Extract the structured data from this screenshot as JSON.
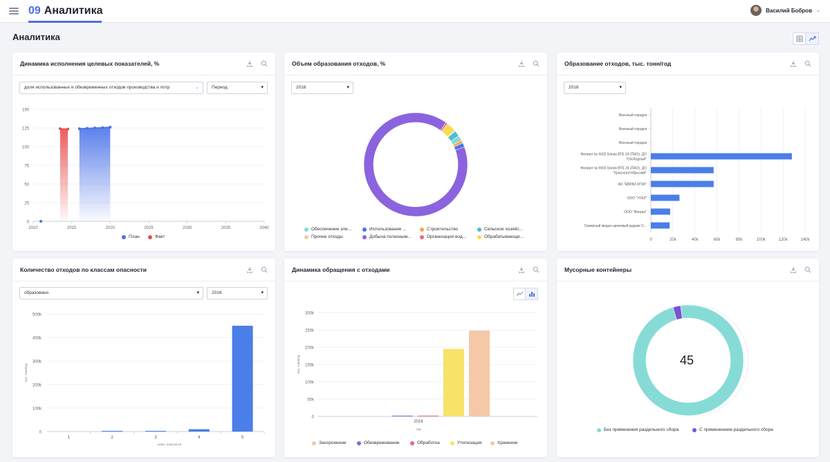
{
  "header": {
    "app_number": "09",
    "app_name": "Аналитика",
    "user_name": "Василий Бобров"
  },
  "page": {
    "title": "Аналитика"
  },
  "colors": {
    "accent": "#4d6fe0",
    "plan": "#4a72e8",
    "fact": "#e84d4d",
    "bar_blue": "#4a7ee8",
    "donut_purple": "#8b63de",
    "container_teal": "#87dbd7",
    "container_purple": "#7b52d6"
  },
  "cards": {
    "targets": {
      "title": "Динамика исполнения целевых показателей, %",
      "indicator_select": "доля использованных и обезвреженных отходов производства и потр",
      "period_select": "Период",
      "legend": [
        "План",
        "Факт"
      ]
    },
    "waste_share": {
      "title": "Объем образования отходов, %",
      "year_select": "2016",
      "legend": [
        "Обеспечение эле...",
        "Использование ...",
        "Строительство",
        "Сельское хозяйс...",
        "Прочие отходы",
        "Добыча полезным...",
        "Организация вод...",
        "Обрабатывающи..."
      ]
    },
    "waste_generation": {
      "title": "Образование отходов, тыс. тонн/год",
      "year_select": "2016"
    },
    "hazard_classes": {
      "title": "Количество отходов по классам опасности",
      "type_select": "образовано",
      "year_select": "2016"
    },
    "waste_handling": {
      "title": "Динамика обращения с отходами",
      "legend": [
        "Захоронение",
        "Обезвреживание",
        "Обработка",
        "Утилизация",
        "Хранение"
      ]
    },
    "containers": {
      "title": "Мусорные контейнеры",
      "total": "45",
      "legend": [
        "Без применения раздельного сбора",
        "С применением раздельного сбора"
      ]
    }
  },
  "chart_data": [
    {
      "id": "targets",
      "type": "line",
      "title": "Динамика исполнения целевых показателей, %",
      "x_ticks": [
        "2010",
        "2015",
        "2020",
        "2025",
        "2030",
        "2035",
        "2040"
      ],
      "y_ticks": [
        "0",
        "25",
        "50",
        "75",
        "100",
        "125",
        "150"
      ],
      "xlim": [
        2010,
        2040
      ],
      "ylim": [
        0,
        150
      ],
      "series": [
        {
          "name": "План",
          "color": "#4a72e8",
          "x": [
            2011,
            2016,
            2017,
            2018,
            2019,
            2020
          ],
          "y": [
            0,
            124,
            124.5,
            125,
            125.5,
            126
          ]
        },
        {
          "name": "Факт",
          "color": "#e84d4d",
          "x": [
            2013.5,
            2014.5
          ],
          "y": [
            124,
            123.5
          ]
        }
      ],
      "area_fill": true,
      "legend_position": "bottom"
    },
    {
      "id": "waste_share",
      "type": "pie",
      "title": "Объем образования отходов, %",
      "donut": true,
      "slices": [
        {
          "label": "Добыча полезным...",
          "value": 90.5,
          "color": "#8b63de"
        },
        {
          "label": "Организация вод...",
          "value": 0.6,
          "color": "#e8648e"
        },
        {
          "label": "Обрабатывающи...",
          "value": 3.0,
          "color": "#f7dc4e"
        },
        {
          "label": "Прочие отходы",
          "value": 0.3,
          "color": "#f5c8a8"
        },
        {
          "label": "Сельское хозяйс...",
          "value": 1.8,
          "color": "#4fbcd3"
        },
        {
          "label": "Обеспечение эле...",
          "value": 1.6,
          "color": "#8ad9d4"
        },
        {
          "label": "Строительство",
          "value": 0.9,
          "color": "#f5a742"
        },
        {
          "label": "Использование ...",
          "value": 1.3,
          "color": "#4a72e8"
        }
      ],
      "legend_position": "bottom"
    },
    {
      "id": "waste_generation",
      "type": "bar",
      "orientation": "horizontal",
      "title": "Образование отходов, тыс. тонн/год",
      "categories": [
        [
          "Военный городок"
        ],
        [
          "Военный городок"
        ],
        [
          "Военный городок"
        ],
        [
          "Филиал № 6602 Банка ВТБ 24 (ПАО), ДО",
          "\"Свободный\""
        ],
        [
          "Филиал № 6602 Банка ВТБ 24 (ПАО), ДО",
          "\"Краснооктябрьский\""
        ],
        [
          "АО \"ЕВРАЗ КГОК\""
        ],
        [
          "ООО \"УГАЗ\""
        ],
        [
          "ООО \"Вагран\""
        ],
        [
          "Северный медно-цинковый рудник О..."
        ]
      ],
      "values": [
        0,
        0,
        0,
        128000,
        57000,
        57000,
        26000,
        17500,
        17000
      ],
      "x_ticks": [
        "0",
        "20k",
        "40k",
        "60k",
        "80k",
        "100k",
        "120k",
        "140k"
      ],
      "xlim": [
        0,
        140000
      ],
      "grid": true
    },
    {
      "id": "hazard_classes",
      "type": "bar",
      "title": "Количество отходов по классам опасности",
      "categories": [
        "1",
        "2",
        "3",
        "4",
        "5"
      ],
      "values": [
        0,
        300,
        2000,
        10000,
        450000
      ],
      "y_ticks": [
        "0",
        "100k",
        "200k",
        "300k",
        "400k",
        "500k"
      ],
      "ylim": [
        0,
        500000
      ],
      "ylabel": "тыс. тонн/год",
      "xlabel": "класс опасности",
      "grid": true
    },
    {
      "id": "waste_handling",
      "type": "bar",
      "title": "Динамика обращения с отходами",
      "categories": [
        "2016"
      ],
      "series": [
        {
          "name": "Захоронение",
          "color": "#f5c8a8",
          "values": [
            0
          ]
        },
        {
          "name": "Обезвреживание",
          "color": "#8b63de",
          "values": [
            1500
          ]
        },
        {
          "name": "Обработка",
          "color": "#e8648e",
          "values": [
            1000
          ]
        },
        {
          "name": "Утилизация",
          "color": "#f7e26a",
          "values": [
            195000
          ]
        },
        {
          "name": "Хранение",
          "color": "#f5c8a8",
          "values": [
            248000
          ]
        }
      ],
      "y_ticks": [
        "0",
        "50k",
        "100k",
        "150k",
        "200k",
        "250k",
        "300k"
      ],
      "ylim": [
        0,
        300000
      ],
      "ylabel": "тыс. тонн/год",
      "xlabel": "год",
      "legend_position": "bottom"
    },
    {
      "id": "containers",
      "type": "pie",
      "title": "Мусорные контейнеры",
      "donut": true,
      "total": 45,
      "slices": [
        {
          "label": "Без применения раздельного сбора",
          "value": 44,
          "color": "#87dbd7"
        },
        {
          "label": "С применением раздельного сбора",
          "value": 1,
          "color": "#7b52d6"
        }
      ],
      "legend_position": "bottom"
    }
  ]
}
